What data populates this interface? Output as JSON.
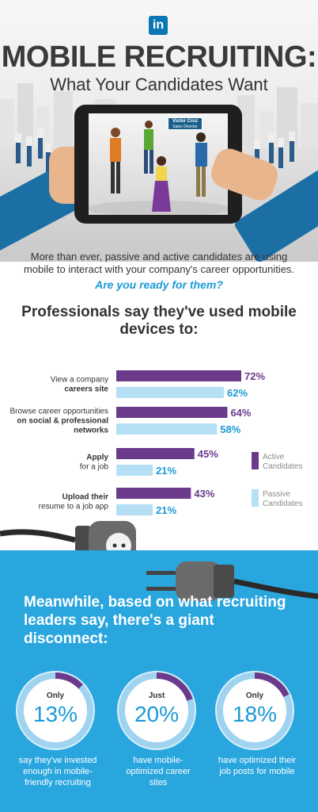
{
  "header": {
    "logo": "in",
    "title": "MOBILE RECRUITING:",
    "subtitle": "What Your Candidates Want"
  },
  "hero": {
    "name_tag": "Victor Cruz",
    "name_tag_sub": "Sales Director"
  },
  "intro": {
    "text": "More than ever, passive and active candidates are using mobile to interact with your company's career opportunities.",
    "question": "Are you ready for them?"
  },
  "chart_heading": "Professionals say they've used mobile devices to:",
  "chart_data": {
    "type": "bar",
    "orientation": "horizontal",
    "categories": [
      {
        "lines": [
          {
            "text": "View a company",
            "bold": false
          },
          {
            "text": "careers site",
            "bold": true
          }
        ]
      },
      {
        "lines": [
          {
            "text": "Browse career opportunities",
            "bold": false
          },
          {
            "text": "on social & professional",
            "bold": true
          },
          {
            "text": "networks",
            "bold": true
          }
        ]
      },
      {
        "lines": [
          {
            "text": "Apply",
            "bold": true
          },
          {
            "text": "for a job",
            "bold": false
          }
        ]
      },
      {
        "lines": [
          {
            "text": "Upload their",
            "bold": true
          },
          {
            "text": "resume to a job app",
            "bold": false
          }
        ]
      }
    ],
    "series": [
      {
        "name": "Active Candidates",
        "values": [
          72,
          64,
          45,
          43
        ],
        "labels": [
          "72%",
          "64%",
          "45%",
          "43%"
        ],
        "color": "#6b3a8a",
        "label_color": "#6b3a8a"
      },
      {
        "name": "Passive Candidates",
        "values": [
          62,
          58,
          21,
          21
        ],
        "labels": [
          "62%",
          "58%",
          "21%",
          "21%"
        ],
        "color": "#b5dff5",
        "label_color": "#1b9ad6"
      }
    ],
    "xlim": [
      0,
      72
    ],
    "legend": "right"
  },
  "recruiters": {
    "heading": "Meanwhile, based on what recruiting leaders say, there's a giant disconnect:",
    "stats": [
      {
        "qualifier": "Only",
        "value": "13%",
        "fraction": 0.13,
        "caption": "say they've invested enough in mobile-friendly recruiting"
      },
      {
        "qualifier": "Just",
        "value": "20%",
        "fraction": 0.2,
        "caption": "have mobile-optimized career sites"
      },
      {
        "qualifier": "Only",
        "value": "18%",
        "fraction": 0.18,
        "caption": "have optimized their job posts for mobile"
      }
    ]
  },
  "colors": {
    "linkedin_blue": "#0a77b5",
    "accent_blue": "#1b9ad6",
    "section_blue": "#2aa6df",
    "active_purple": "#6b3a8a",
    "passive_light_blue": "#b5dff5"
  }
}
